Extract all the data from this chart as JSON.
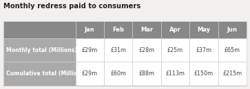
{
  "title": "Monthly redress paid to consumers",
  "columns": [
    "Jan",
    "Feb",
    "Mar",
    "Apr",
    "May",
    "Jun"
  ],
  "row_labels": [
    "Monthly total (Millions)",
    "Cumulative total (Millions)"
  ],
  "row1_values": [
    "£29m",
    "£31m",
    "£28m",
    "£25m",
    "£37m",
    "£65m"
  ],
  "row2_values": [
    "£29m",
    "£60m",
    "£88m",
    "£113m",
    "£150m",
    "£215m"
  ],
  "header_bg": "#888888",
  "header_text": "#ffffff",
  "label_bg": "#aaaaaa",
  "label_text": "#ffffff",
  "cell_bg": "#ffffff",
  "cell_text": "#444444",
  "title_color": "#222222",
  "border_color": "#cccccc",
  "bg_color": "#f2f0ee",
  "table_border": "#aaaaaa"
}
